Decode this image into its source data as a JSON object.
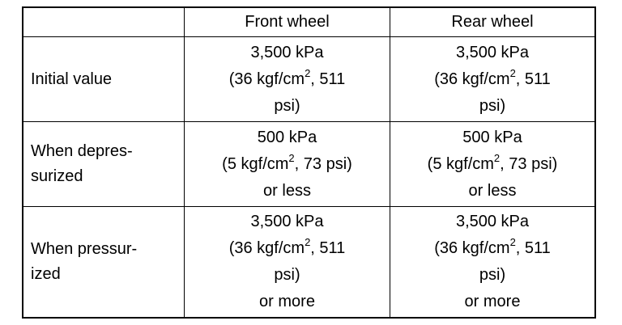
{
  "table": {
    "headers": [
      "",
      "Front wheel",
      "Rear wheel"
    ],
    "rows": [
      {
        "label": [
          "Initial value"
        ],
        "front": {
          "l1": "3,500 kPa",
          "l2a": "(36 kgf/cm",
          "sup": "2",
          "l2b": ", 511",
          "l3": "psi)",
          "l4": ""
        },
        "rear": {
          "l1": "3,500 kPa",
          "l2a": "(36 kgf/cm",
          "sup": "2",
          "l2b": ", 511",
          "l3": "psi)",
          "l4": ""
        }
      },
      {
        "label": [
          "When depres-",
          "surized"
        ],
        "front": {
          "l1": "500 kPa",
          "l2a": "(5 kgf/cm",
          "sup": "2",
          "l2b": ", 73 psi)",
          "l3": "or less",
          "l4": ""
        },
        "rear": {
          "l1": "500 kPa",
          "l2a": "(5 kgf/cm",
          "sup": "2",
          "l2b": ", 73 psi)",
          "l3": "or less",
          "l4": ""
        }
      },
      {
        "label": [
          "When pressur-",
          "ized"
        ],
        "front": {
          "l1": "3,500 kPa",
          "l2a": "(36 kgf/cm",
          "sup": "2",
          "l2b": ", 511",
          "l3": "psi)",
          "l4": "or more"
        },
        "rear": {
          "l1": "3,500 kPa",
          "l2a": "(36 kgf/cm",
          "sup": "2",
          "l2b": ", 511",
          "l3": "psi)",
          "l4": "or more"
        }
      }
    ]
  }
}
